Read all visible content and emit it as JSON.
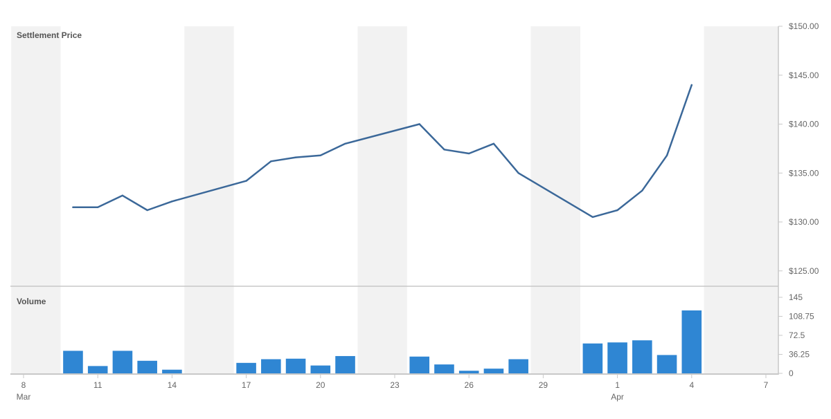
{
  "chart_data": {
    "type": "line",
    "x_start": "2024-03-08",
    "x_end": "2024-04-07",
    "x_ticks": [
      {
        "date": "2024-03-08",
        "label": "8",
        "sublabel": "Mar"
      },
      {
        "date": "2024-03-11",
        "label": "11",
        "sublabel": ""
      },
      {
        "date": "2024-03-14",
        "label": "14",
        "sublabel": ""
      },
      {
        "date": "2024-03-17",
        "label": "17",
        "sublabel": ""
      },
      {
        "date": "2024-03-20",
        "label": "20",
        "sublabel": ""
      },
      {
        "date": "2024-03-23",
        "label": "23",
        "sublabel": ""
      },
      {
        "date": "2024-03-26",
        "label": "26",
        "sublabel": ""
      },
      {
        "date": "2024-03-29",
        "label": "29",
        "sublabel": ""
      },
      {
        "date": "2024-04-01",
        "label": "1",
        "sublabel": "Apr"
      },
      {
        "date": "2024-04-04",
        "label": "4",
        "sublabel": ""
      },
      {
        "date": "2024-04-07",
        "label": "7",
        "sublabel": ""
      }
    ],
    "weekend_shading": [
      {
        "from": "2024-03-08",
        "to": "2024-03-09"
      },
      {
        "from": "2024-03-15",
        "to": "2024-03-16"
      },
      {
        "from": "2024-03-22",
        "to": "2024-03-23"
      },
      {
        "from": "2024-03-29",
        "to": "2024-03-30"
      },
      {
        "from": "2024-04-05",
        "to": "2024-04-07"
      }
    ],
    "price_panel": {
      "title": "Settlement Price",
      "ylim": [
        123.5,
        150
      ],
      "y_ticks": [
        {
          "value": 125,
          "label": "$125.00"
        },
        {
          "value": 130,
          "label": "$130.00"
        },
        {
          "value": 135,
          "label": "$135.00"
        },
        {
          "value": 140,
          "label": "$140.00"
        },
        {
          "value": 145,
          "label": "$145.00"
        },
        {
          "value": 150,
          "label": "$150.00"
        }
      ],
      "line_color": "#3b6899",
      "points": [
        {
          "date": "2024-03-10",
          "value": 131.5
        },
        {
          "date": "2024-03-11",
          "value": 131.5
        },
        {
          "date": "2024-03-12",
          "value": 132.7
        },
        {
          "date": "2024-03-13",
          "value": 131.2
        },
        {
          "date": "2024-03-14",
          "value": 132.1
        },
        {
          "date": "2024-03-17",
          "value": 134.2
        },
        {
          "date": "2024-03-18",
          "value": 136.2
        },
        {
          "date": "2024-03-19",
          "value": 136.6
        },
        {
          "date": "2024-03-20",
          "value": 136.8
        },
        {
          "date": "2024-03-21",
          "value": 138.0
        },
        {
          "date": "2024-03-24",
          "value": 140.0
        },
        {
          "date": "2024-03-25",
          "value": 137.4
        },
        {
          "date": "2024-03-26",
          "value": 137.0
        },
        {
          "date": "2024-03-27",
          "value": 138.0
        },
        {
          "date": "2024-03-28",
          "value": 135.0
        },
        {
          "date": "2024-03-31",
          "value": 130.5
        },
        {
          "date": "2024-04-01",
          "value": 131.2
        },
        {
          "date": "2024-04-02",
          "value": 133.2
        },
        {
          "date": "2024-04-03",
          "value": 136.8
        },
        {
          "date": "2024-04-04",
          "value": 144.0
        }
      ]
    },
    "volume_panel": {
      "title": "Volume",
      "ylim": [
        0,
        145
      ],
      "y_ticks": [
        {
          "value": 0,
          "label": "0"
        },
        {
          "value": 36.25,
          "label": "36.25"
        },
        {
          "value": 72.5,
          "label": "72.5"
        },
        {
          "value": 108.75,
          "label": "108.75"
        },
        {
          "value": 145,
          "label": "145"
        }
      ],
      "bar_color": "#2f86d3",
      "bars": [
        {
          "date": "2024-03-10",
          "value": 43
        },
        {
          "date": "2024-03-11",
          "value": 14
        },
        {
          "date": "2024-03-12",
          "value": 43
        },
        {
          "date": "2024-03-13",
          "value": 24
        },
        {
          "date": "2024-03-14",
          "value": 7
        },
        {
          "date": "2024-03-17",
          "value": 20
        },
        {
          "date": "2024-03-18",
          "value": 27
        },
        {
          "date": "2024-03-19",
          "value": 28
        },
        {
          "date": "2024-03-20",
          "value": 15
        },
        {
          "date": "2024-03-21",
          "value": 33
        },
        {
          "date": "2024-03-24",
          "value": 32
        },
        {
          "date": "2024-03-25",
          "value": 17
        },
        {
          "date": "2024-03-26",
          "value": 5
        },
        {
          "date": "2024-03-27",
          "value": 9
        },
        {
          "date": "2024-03-28",
          "value": 27
        },
        {
          "date": "2024-03-31",
          "value": 57
        },
        {
          "date": "2024-04-01",
          "value": 59
        },
        {
          "date": "2024-04-02",
          "value": 63
        },
        {
          "date": "2024-04-03",
          "value": 35
        },
        {
          "date": "2024-04-04",
          "value": 120
        }
      ]
    },
    "grid": false,
    "legend": "none"
  }
}
